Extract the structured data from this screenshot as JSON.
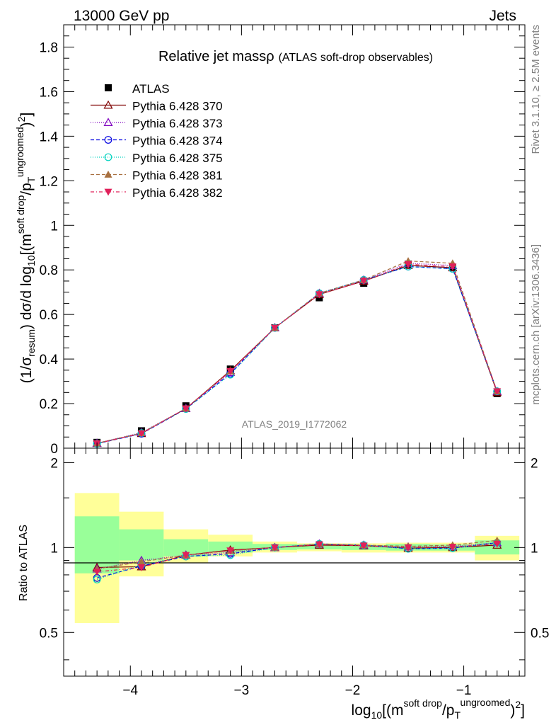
{
  "header": {
    "left": "13000 GeV pp",
    "right": "Jets"
  },
  "side_labels": {
    "rivet": "Rivet 3.1.10, ≥ 2.5M events",
    "site": "mcplots.cern.ch [arXiv:1306.3436]"
  },
  "analysis_id": "ATLAS_2019_I1772062",
  "chart_data": [
    {
      "type": "line",
      "title": "Relative jet massρ",
      "subtitle": "(ATLAS soft-drop observables)",
      "ylabel": "(1/σ_resum) dσ/d log10[(m^soft drop/p_T^ungroomed)^2]",
      "xlabel": "log10[(m^soft drop/p_T^ungroomed)^2]",
      "xlim": [
        -4.6,
        -0.45
      ],
      "ylim": [
        0,
        1.9
      ],
      "yticks": [
        0,
        0.2,
        0.4,
        0.6,
        0.8,
        1,
        1.2,
        1.4,
        1.6,
        1.8
      ],
      "ytick_labels": [
        "0",
        "0.2",
        "0.4",
        "0.6",
        "0.8",
        "1",
        "1.2",
        "1.4",
        "1.6",
        "1.8"
      ],
      "x": [
        -4.3,
        -3.9,
        -3.5,
        -3.1,
        -2.7,
        -2.3,
        -1.9,
        -1.5,
        -1.1,
        -0.7
      ],
      "data": {
        "name": "ATLAS",
        "color": "#000000",
        "values": [
          0.026,
          0.078,
          0.19,
          0.355,
          0.54,
          0.675,
          0.74,
          0.825,
          0.81,
          0.245
        ]
      },
      "series": [
        {
          "name": "Pythia 6.428 370",
          "color": "#7f0000",
          "marker": "open-triangle-up",
          "dash": "",
          "values": [
            0.022,
            0.066,
            0.178,
            0.348,
            0.54,
            0.69,
            0.75,
            0.82,
            0.81,
            0.25
          ]
        },
        {
          "name": "Pythia 6.428 373",
          "color": "#7f00bf",
          "marker": "open-triangle-up",
          "dash": "1,2",
          "values": [
            0.022,
            0.07,
            0.178,
            0.34,
            0.54,
            0.695,
            0.755,
            0.83,
            0.82,
            0.255
          ]
        },
        {
          "name": "Pythia 6.428 374",
          "color": "#0000e0",
          "marker": "open-circle",
          "dash": "5,3",
          "values": [
            0.02,
            0.065,
            0.176,
            0.335,
            0.54,
            0.695,
            0.755,
            0.815,
            0.805,
            0.255
          ]
        },
        {
          "name": "Pythia 6.428 375",
          "color": "#00d2bf",
          "marker": "open-circle",
          "dash": "1,2",
          "values": [
            0.02,
            0.068,
            0.176,
            0.33,
            0.54,
            0.695,
            0.755,
            0.815,
            0.805,
            0.255
          ]
        },
        {
          "name": "Pythia 6.428 381",
          "color": "#a87040",
          "marker": "filled-triangle-up",
          "dash": "5,3",
          "values": [
            0.022,
            0.068,
            0.178,
            0.345,
            0.54,
            0.695,
            0.755,
            0.84,
            0.83,
            0.255
          ]
        },
        {
          "name": "Pythia 6.428 382",
          "color": "#e0205a",
          "marker": "filled-triangle-down",
          "dash": "5,3,1,3",
          "values": [
            0.021,
            0.066,
            0.178,
            0.345,
            0.54,
            0.69,
            0.75,
            0.825,
            0.815,
            0.255
          ]
        }
      ]
    },
    {
      "type": "line",
      "ylabel": "Ratio to ATLAS",
      "ylim": [
        0.35,
        2.25
      ],
      "yticks": [
        0.5,
        1,
        2
      ],
      "ytick_labels": [
        "0.5",
        "1",
        "2"
      ],
      "xticks": [
        -4,
        -3,
        -2,
        -1
      ],
      "xtick_labels": [
        "−4",
        "−3",
        "−2",
        "−1"
      ],
      "bin_edges": [
        -4.5,
        -4.1,
        -3.7,
        -3.3,
        -2.9,
        -2.5,
        -2.1,
        -1.7,
        -1.3,
        -0.9,
        -0.5
      ],
      "band_colors": {
        "inner": "#99ff99",
        "outer": "#ffff99"
      },
      "band_inner": [
        [
          0.81,
          1.29
        ],
        [
          0.9,
          1.16
        ],
        [
          0.93,
          1.07
        ],
        [
          0.96,
          1.05
        ],
        [
          0.98,
          1.03
        ],
        [
          0.985,
          1.025
        ],
        [
          0.98,
          1.02
        ],
        [
          0.975,
          1.03
        ],
        [
          0.975,
          1.025
        ],
        [
          0.945,
          1.06
        ]
      ],
      "band_outer": [
        [
          0.54,
          1.56
        ],
        [
          0.79,
          1.34
        ],
        [
          0.88,
          1.16
        ],
        [
          0.93,
          1.11
        ],
        [
          0.96,
          1.05
        ],
        [
          0.97,
          1.035
        ],
        [
          0.96,
          1.035
        ],
        [
          0.96,
          1.04
        ],
        [
          0.96,
          1.04
        ],
        [
          0.9,
          1.1
        ]
      ],
      "x": [
        -4.3,
        -3.9,
        -3.5,
        -3.1,
        -2.7,
        -2.3,
        -1.9,
        -1.5,
        -1.1,
        -0.7
      ],
      "series": [
        {
          "name": "Pythia 6.428 370",
          "values": [
            0.85,
            0.855,
            0.94,
            0.98,
            1.0,
            1.02,
            1.015,
            0.995,
            1.0,
            1.02
          ]
        },
        {
          "name": "Pythia 6.428 373",
          "values": [
            0.84,
            0.9,
            0.94,
            0.96,
            1.0,
            1.03,
            1.02,
            1.005,
            1.01,
            1.04
          ]
        },
        {
          "name": "Pythia 6.428 374",
          "values": [
            0.78,
            0.86,
            0.93,
            0.95,
            1.0,
            1.03,
            1.02,
            0.99,
            0.995,
            1.04
          ]
        },
        {
          "name": "Pythia 6.428 375",
          "values": [
            0.77,
            0.87,
            0.93,
            0.94,
            1.0,
            1.03,
            1.02,
            0.99,
            0.995,
            1.04
          ]
        },
        {
          "name": "Pythia 6.428 381",
          "values": [
            0.84,
            0.89,
            0.94,
            0.975,
            1.0,
            1.03,
            1.02,
            1.01,
            1.02,
            1.06
          ]
        },
        {
          "name": "Pythia 6.428 382",
          "values": [
            0.82,
            0.85,
            0.94,
            0.975,
            1.0,
            1.025,
            1.015,
            1.0,
            1.005,
            1.03
          ]
        }
      ]
    }
  ]
}
